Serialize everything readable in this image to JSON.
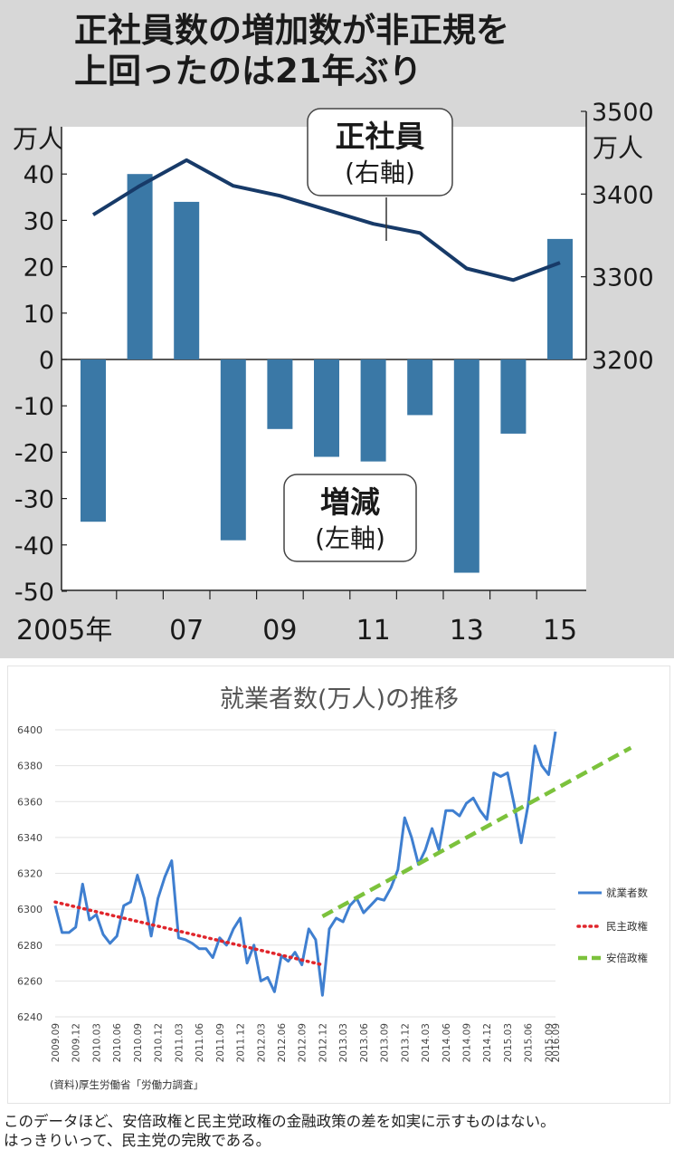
{
  "caption": {
    "line1": "このデータほど、安倍政権と民主党政権の金融政策の差を如実に示すものはない。",
    "line2": "はっきりいって、民主党の完敗である。"
  },
  "chart_data": [
    {
      "type": "bar",
      "title_line1": "正社員数の増加数が非正規を",
      "title_line2": "上回ったのは21年ぶり",
      "left_unit": "万人",
      "right_unit": "万人",
      "years": [
        2005,
        2006,
        2007,
        2008,
        2009,
        2010,
        2011,
        2012,
        2013,
        2014,
        2015
      ],
      "x_tick_labels": [
        {
          "year": 2005,
          "label": "2005年"
        },
        {
          "year": 2007,
          "label": "07"
        },
        {
          "year": 2009,
          "label": "09"
        },
        {
          "year": 2011,
          "label": "11"
        },
        {
          "year": 2013,
          "label": "13"
        },
        {
          "year": 2015,
          "label": "15"
        }
      ],
      "ylim_left": [
        -50,
        40
      ],
      "yticks_left": [
        40,
        30,
        20,
        10,
        0,
        -10,
        -20,
        -30,
        -40,
        -50
      ],
      "ylim_right": [
        3200,
        3500
      ],
      "yticks_right": [
        3500,
        3400,
        3300,
        3200
      ],
      "series": [
        {
          "name": "増減",
          "sub": "(左軸)",
          "kind": "bar",
          "axis": "left",
          "color": "#3a78a6",
          "values": [
            -35,
            40,
            34,
            -39,
            -15,
            -21,
            -22,
            -12,
            -46,
            -16,
            26
          ]
        },
        {
          "name": "正社員",
          "sub": "(右軸)",
          "kind": "line",
          "axis": "right",
          "color": "#173a68",
          "values": [
            3375,
            3410,
            3441,
            3410,
            3398,
            3381,
            3364,
            3353,
            3310,
            3296,
            3317
          ]
        }
      ]
    },
    {
      "type": "line",
      "title": "就業者数(万人)の推移",
      "source": "(資料)厚生労働省「労働力調査」",
      "ylim": [
        6240,
        6400
      ],
      "yticks": [
        6400,
        6380,
        6360,
        6340,
        6320,
        6300,
        6280,
        6260,
        6240
      ],
      "x_tick_labels": [
        "2009.09",
        "2009.12",
        "2010.03",
        "2010.06",
        "2010.09",
        "2010.12",
        "2011.03",
        "2011.06",
        "2011.09",
        "2011.12",
        "2012.03",
        "2012.06",
        "2012.09",
        "2012.12",
        "2013.03",
        "2013.06",
        "2013.09",
        "2013.12",
        "2014.03",
        "2014.06",
        "2014.09",
        "2014.12",
        "2015.03",
        "2015.06",
        "2015.09",
        "2016.09"
      ],
      "series": [
        {
          "name": "就業者数",
          "style": "solid",
          "color": "#3f7fd0",
          "values": [
            6302,
            6287,
            6287,
            6290,
            6314,
            6294,
            6297,
            6286,
            6281,
            6285,
            6302,
            6304,
            6319,
            6306,
            6285,
            6306,
            6318,
            6327,
            6284,
            6283,
            6281,
            6278,
            6278,
            6273,
            6284,
            6280,
            6289,
            6295,
            6270,
            6280,
            6260,
            6262,
            6254,
            6274,
            6271,
            6276,
            6269,
            6289,
            6283,
            6252,
            6289,
            6295,
            6293,
            6302,
            6306,
            6298,
            6302,
            6306,
            6305,
            6312,
            6322,
            6351,
            6340,
            6325,
            6333,
            6345,
            6333,
            6355,
            6355,
            6352,
            6359,
            6362,
            6355,
            6350,
            6376,
            6374,
            6376,
            6358,
            6337,
            6358,
            6391,
            6380,
            6375,
            6399
          ]
        },
        {
          "name": "民主政権",
          "style": "dotted",
          "color": "#e0262c",
          "start": {
            "x": "2009.09",
            "y": 6304
          },
          "end": {
            "x": "2012.12",
            "y": 6269
          }
        },
        {
          "name": "安倍政権",
          "style": "dashed",
          "color": "#7cc23c",
          "start": {
            "x": "2012.12",
            "y": 6296
          },
          "end": {
            "x": "2016.09",
            "y": 6390
          }
        }
      ]
    }
  ]
}
